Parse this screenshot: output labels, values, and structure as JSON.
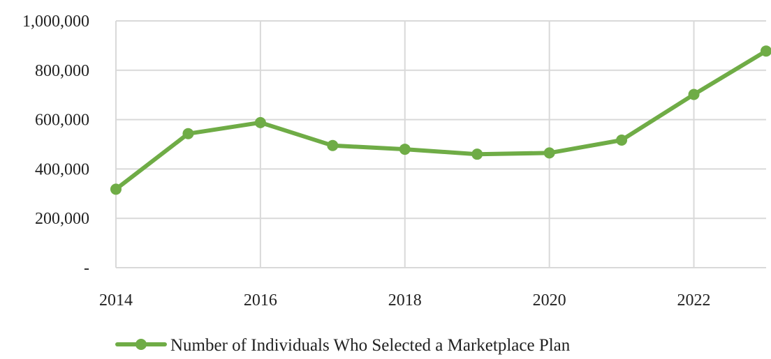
{
  "chart_data": {
    "type": "line",
    "x": [
      2014,
      2015,
      2016,
      2017,
      2018,
      2019,
      2020,
      2021,
      2022,
      2023
    ],
    "series": [
      {
        "name": "Number of Individuals Who Selected a Marketplace Plan",
        "values": [
          318000,
          543000,
          588000,
          495000,
          480000,
          460000,
          465000,
          517000,
          702000,
          878000
        ],
        "color": "#6fac46"
      }
    ],
    "x_ticks": [
      2014,
      2016,
      2018,
      2020,
      2022
    ],
    "x_tick_labels": [
      "2014",
      "2016",
      "2018",
      "2020",
      "2022"
    ],
    "xlim": [
      2014,
      2023
    ],
    "ylim": [
      0,
      1000000
    ],
    "y_ticks": [
      0,
      200000,
      400000,
      600000,
      800000,
      1000000
    ],
    "y_tick_labels": [
      "-",
      "200,000",
      "400,000",
      "600,000",
      "800,000",
      "1,000,000"
    ],
    "x_gridlines": [
      2014,
      2016,
      2018,
      2020,
      2022
    ],
    "grid": true,
    "gridline_color": "#d9d9d9",
    "legend_position": "bottom",
    "title": "",
    "xlabel": "",
    "ylabel": ""
  }
}
